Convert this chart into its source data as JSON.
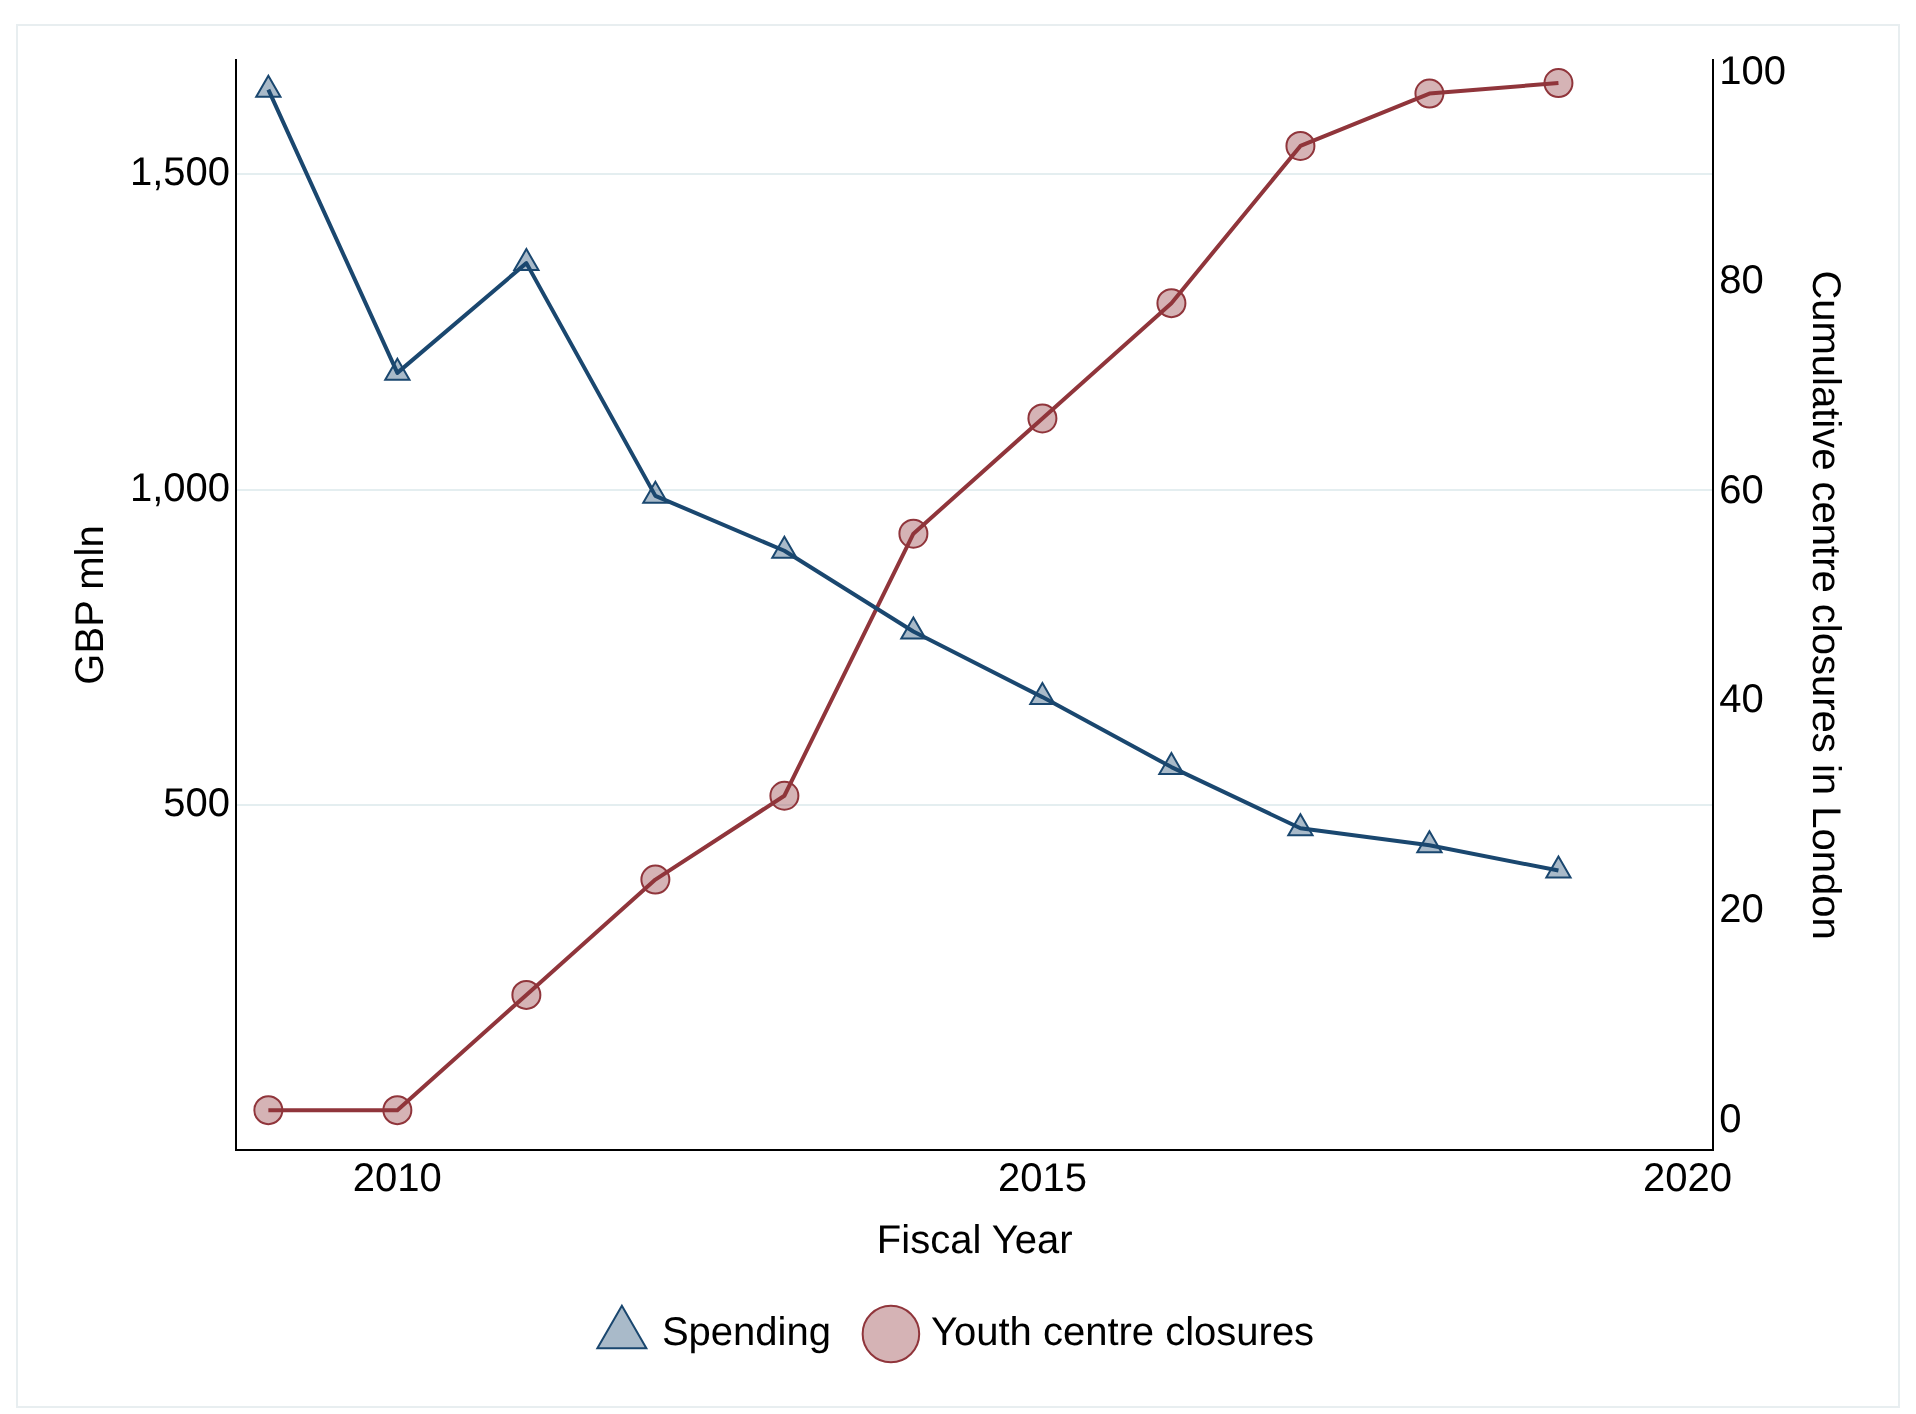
{
  "chart_data": {
    "type": "line",
    "xlabel": "Fiscal Year",
    "ylabel": "GBP mln",
    "y2label": "Cumulative centre closures in London",
    "x": [
      2009,
      2010,
      2011,
      2012,
      2013,
      2014,
      2015,
      2016,
      2017,
      2018,
      2019
    ],
    "series": [
      {
        "name": "Spending",
        "color": "#1a476f",
        "marker": "triangle",
        "values": [
          1634,
          1185,
          1359,
          990,
          903,
          775,
          671,
          560,
          463,
          436,
          396
        ]
      },
      {
        "name": "Youth centre closures",
        "color": "#90353b",
        "marker": "circle",
        "axis": "y2",
        "values": [
          1,
          1,
          12,
          23,
          31,
          56,
          67,
          78,
          93,
          98,
          99
        ]
      }
    ],
    "xlim": [
      2008.75,
      2020.2
    ],
    "xticks": [
      2010,
      2015,
      2020
    ],
    "ylim": [
      -47,
      1681
    ],
    "yticks": [
      500,
      {
        "value": 1000,
        "label": "1,000"
      },
      {
        "value": 1500,
        "label": "1,500"
      }
    ],
    "y2lim": [
      -2.8,
      101.2
    ],
    "y2ticks": [
      0,
      20,
      40,
      60,
      80,
      100
    ],
    "grid": "y",
    "legend": "bottom",
    "line_style": "solid"
  }
}
